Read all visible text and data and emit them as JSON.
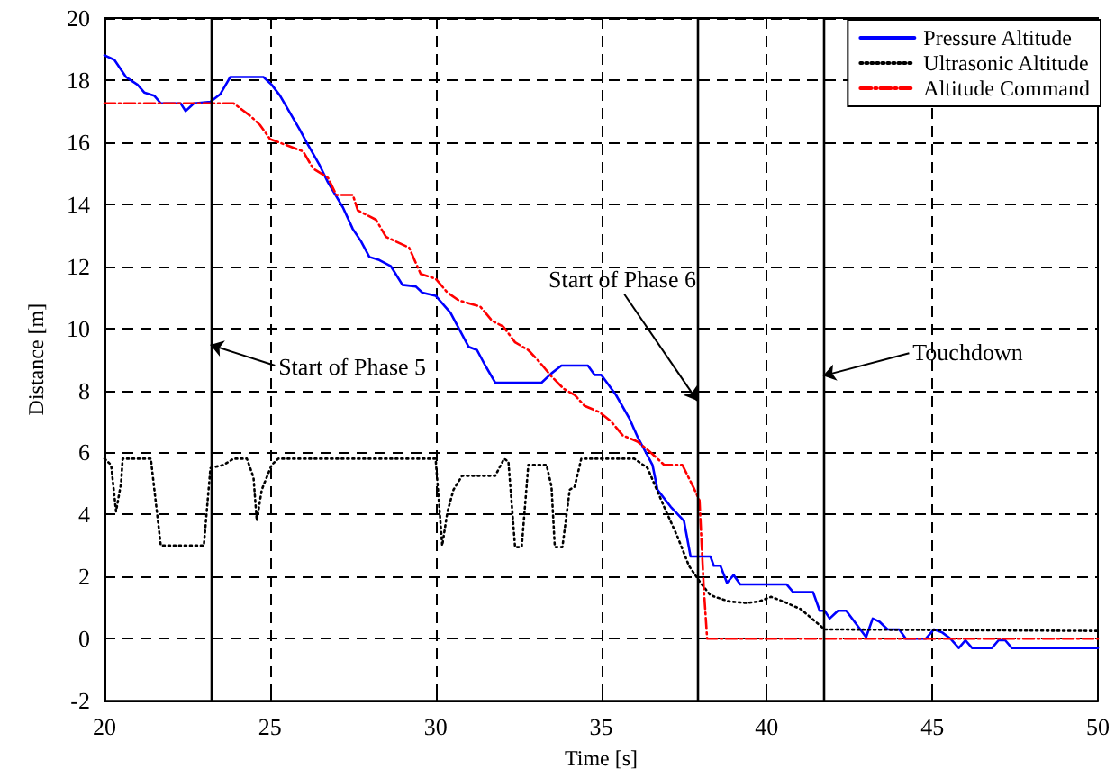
{
  "chart_data": {
    "type": "line",
    "xlabel": "Time [s]",
    "ylabel": "Distance [m]",
    "xlim": [
      20,
      50
    ],
    "ylim": [
      -2,
      20
    ],
    "xticks": [
      20,
      25,
      30,
      35,
      40,
      45,
      50
    ],
    "yticks": [
      -2,
      0,
      2,
      4,
      6,
      8,
      10,
      12,
      14,
      16,
      18,
      20
    ],
    "grid": true,
    "legend": "top right",
    "marker": "none",
    "series": [
      {
        "name": "Pressure Altitude",
        "color": "#0000ff",
        "line_style": "solid",
        "x": [
          20,
          20.3,
          20.65,
          21.0,
          21.2,
          21.5,
          21.7,
          22.3,
          22.45,
          22.7,
          23.2,
          23.5,
          23.8,
          24.8,
          25.05,
          25.3,
          25.6,
          25.9,
          26.1,
          26.5,
          26.75,
          27.2,
          27.5,
          27.75,
          28.0,
          28.3,
          28.65,
          29.0,
          29.4,
          29.6,
          30.0,
          30.45,
          31.0,
          31.25,
          31.5,
          31.8,
          33.2,
          33.5,
          33.8,
          34.6,
          34.8,
          35.0,
          35.45,
          35.85,
          36.1,
          36.55,
          36.7,
          37.1,
          37.5,
          37.7,
          38.3,
          38.4,
          38.6,
          38.8,
          39.0,
          39.2,
          40.6,
          40.8,
          41.4,
          41.6,
          41.75,
          41.9,
          42.15,
          42.4,
          43.0,
          43.2,
          43.4,
          43.65,
          44.0,
          44.2,
          44.8,
          45.05,
          45.3,
          45.55,
          45.8,
          46.0,
          46.2,
          46.8,
          47.0,
          47.2,
          47.4,
          50
        ],
        "values": [
          18.8,
          18.65,
          18.1,
          17.85,
          17.6,
          17.5,
          17.25,
          17.25,
          17.0,
          17.25,
          17.3,
          17.55,
          18.1,
          18.1,
          17.85,
          17.5,
          16.95,
          16.4,
          16.0,
          15.25,
          14.7,
          13.9,
          13.2,
          12.8,
          12.3,
          12.2,
          12.0,
          11.4,
          11.35,
          11.15,
          11.05,
          10.5,
          9.4,
          9.3,
          8.8,
          8.25,
          8.25,
          8.55,
          8.8,
          8.8,
          8.5,
          8.5,
          7.85,
          7.1,
          6.5,
          5.6,
          4.8,
          4.25,
          3.8,
          2.65,
          2.65,
          2.35,
          2.35,
          1.8,
          2.05,
          1.75,
          1.75,
          1.5,
          1.5,
          0.9,
          0.9,
          0.65,
          0.9,
          0.9,
          0.05,
          0.65,
          0.55,
          0.3,
          0.3,
          0.0,
          0.0,
          0.3,
          0.2,
          0.0,
          -0.3,
          -0.05,
          -0.3,
          -0.3,
          -0.05,
          -0.05,
          -0.3,
          -0.3
        ]
      },
      {
        "name": "Ultrasonic Altitude",
        "color": "#000000",
        "line_style": "dotted",
        "x": [
          20,
          20.2,
          20.35,
          20.5,
          20.55,
          21.4,
          21.7,
          23.0,
          23.2,
          23.6,
          23.9,
          24.3,
          24.5,
          24.6,
          24.75,
          25.05,
          25.25,
          30.0,
          30.2,
          30.36,
          30.54,
          30.8,
          31.8,
          32.07,
          32.2,
          32.4,
          32.6,
          32.8,
          33.35,
          33.5,
          33.6,
          33.83,
          34.05,
          34.2,
          34.4,
          36.0,
          36.4,
          36.9,
          37.3,
          37.65,
          38.0,
          38.3,
          38.86,
          39.4,
          39.77,
          40.13,
          40.5,
          41.03,
          41.75,
          50
        ],
        "values": [
          5.8,
          5.6,
          4.1,
          5.0,
          5.8,
          5.8,
          3.0,
          3.0,
          5.5,
          5.6,
          5.8,
          5.8,
          5.2,
          3.8,
          4.8,
          5.6,
          5.8,
          5.8,
          3.0,
          4.1,
          4.8,
          5.25,
          5.25,
          5.8,
          5.7,
          2.95,
          2.95,
          5.6,
          5.6,
          4.9,
          2.95,
          2.95,
          4.8,
          4.9,
          5.8,
          5.8,
          5.5,
          4.25,
          3.3,
          2.35,
          1.8,
          1.4,
          1.2,
          1.15,
          1.2,
          1.35,
          1.2,
          0.95,
          0.3,
          0.25
        ]
      },
      {
        "name": "Altitude Command",
        "color": "#ff0000",
        "line_style": "dashed",
        "x": [
          20,
          23.9,
          24.15,
          24.4,
          24.7,
          25.0,
          25.5,
          26.0,
          26.3,
          26.75,
          27.0,
          27.5,
          27.65,
          28.2,
          28.5,
          29.2,
          29.55,
          30.0,
          30.36,
          30.7,
          31.35,
          31.7,
          32.05,
          32.4,
          32.8,
          33.15,
          33.5,
          33.87,
          34.2,
          34.5,
          34.95,
          35.3,
          35.65,
          36.1,
          36.55,
          36.9,
          37.45,
          37.8,
          37.97,
          38.1,
          38.2,
          50
        ],
        "values": [
          17.25,
          17.25,
          17.05,
          16.85,
          16.55,
          16.1,
          15.9,
          15.7,
          15.15,
          14.85,
          14.3,
          14.3,
          13.8,
          13.5,
          12.95,
          12.6,
          11.75,
          11.6,
          11.15,
          10.9,
          10.7,
          10.25,
          10.05,
          9.55,
          9.3,
          8.9,
          8.45,
          8.05,
          7.85,
          7.5,
          7.3,
          7.0,
          6.55,
          6.35,
          5.95,
          5.6,
          5.6,
          4.85,
          4.45,
          1.6,
          0,
          0
        ]
      }
    ],
    "ref_lines": [
      {
        "axis": "x",
        "value": 23.2,
        "label": "Start of Phase 5",
        "color": "#000000",
        "line_style": "solid"
      },
      {
        "axis": "x",
        "value": 37.9,
        "label": "Start of Phase 6",
        "color": "#000000",
        "line_style": "solid"
      },
      {
        "axis": "x",
        "value": 41.7,
        "label": "Touchdown",
        "color": "#000000",
        "line_style": "solid"
      }
    ]
  }
}
